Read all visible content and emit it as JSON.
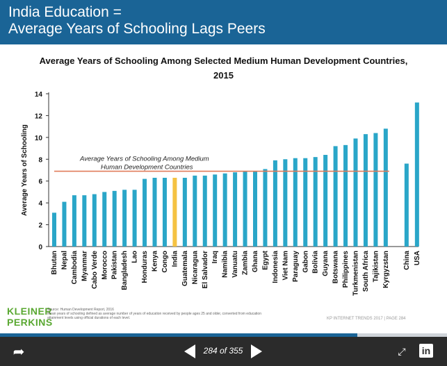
{
  "slide": {
    "title_line1": "India Education =",
    "title_line2": "Average Years of Schooling Lags Peers",
    "header_color": "#1a6496"
  },
  "chart_data": {
    "type": "bar",
    "title_line1": "Average Years of Schooling Among Selected Medium Human Development Countries,",
    "title_line2": "2015",
    "xlabel": "",
    "ylabel": "Average Years of Schooling",
    "ylim": [
      0,
      14
    ],
    "yticks": [
      0,
      2,
      4,
      6,
      8,
      10,
      12,
      14
    ],
    "grid": false,
    "bar_color": "#2aa6c8",
    "highlight_color": "#f5c242",
    "highlight_category": "India",
    "categories": [
      "Bhutan",
      "Nepal",
      "Cambodia",
      "Myanmar",
      "Cabo Verde",
      "Morocco",
      "Pakistan",
      "Bangladesh",
      "Lao",
      "Honduras",
      "Kenya",
      "Congo",
      "India",
      "Guatemala",
      "Nicaragua",
      "El Salvador",
      "Iraq",
      "Namibia",
      "Vanuatu",
      "Zambia",
      "Ghana",
      "Egypt",
      "Indonesia",
      "Viet Nam",
      "Paraguay",
      "Gabon",
      "Bolivia",
      "Guyana",
      "Botswana",
      "Philippines",
      "Turkmenistan",
      "South Africa",
      "Tajikistan",
      "Kyrgyzstan"
    ],
    "values": [
      3.1,
      4.1,
      4.7,
      4.7,
      4.8,
      5.0,
      5.1,
      5.2,
      5.2,
      6.2,
      6.3,
      6.3,
      6.3,
      6.3,
      6.5,
      6.5,
      6.6,
      6.7,
      6.8,
      6.9,
      6.9,
      7.1,
      7.9,
      8.0,
      8.1,
      8.1,
      8.2,
      8.4,
      9.2,
      9.3,
      9.9,
      10.3,
      10.4,
      10.8
    ],
    "extra_categories": [
      "China",
      "USA"
    ],
    "extra_values": [
      7.6,
      13.2
    ],
    "average_line": {
      "value": 6.9,
      "label_line1": "Average Years of Schooling Among Medium",
      "label_line2": "Human Development Countries",
      "color": "#e07b5a"
    }
  },
  "footer": {
    "logo_line1": "KLEINER",
    "logo_line2": "PERKINS",
    "logo_color": "#5aa832",
    "source_line1": "Source: Human Development Report, 2016",
    "source_line2": "Mean years of schooling defined as average number of years of education received by people ages 25 and older, converted from education",
    "source_line3": "attainment levels using official durations of each level.",
    "right_text": "KP INTERNET TRENDS 2017  |  PAGE 284"
  },
  "viewer": {
    "page_indicator": "284 of 355",
    "progress": 0.8,
    "share_icon": "share-arrow-icon",
    "prev_icon": "triangle-left-icon",
    "next_icon": "triangle-right-icon",
    "fullscreen_icon": "expand-icon",
    "linkedin_label": "in"
  }
}
